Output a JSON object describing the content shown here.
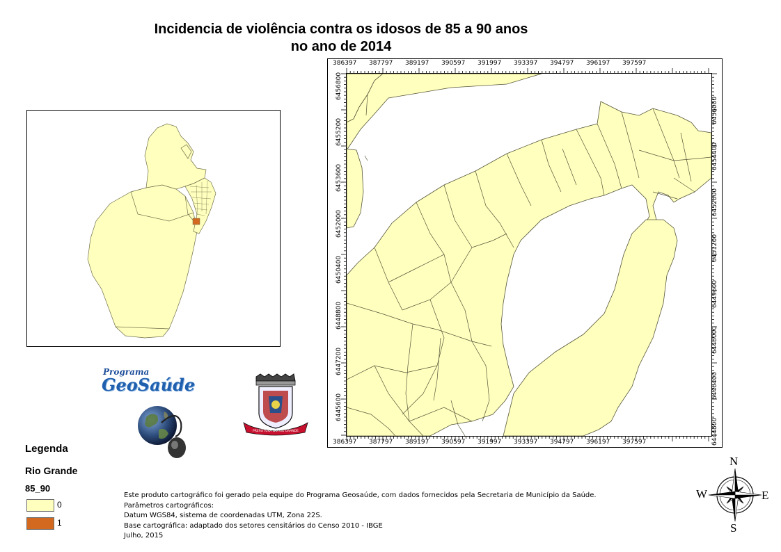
{
  "title": {
    "line1": "Incidencia de violência contra os idosos de 85 a 90 anos",
    "line2": "no ano de 2014"
  },
  "map": {
    "x_ticks": [
      "386397",
      "387797",
      "389197",
      "390597",
      "391997",
      "393397",
      "394797",
      "396197",
      "397597"
    ],
    "y_ticks_left": [
      "6456800",
      "6455200",
      "6453600",
      "6452000",
      "6450400",
      "6448800",
      "6447200",
      "6445600"
    ],
    "y_ticks_right": [
      "6456000",
      "6454400",
      "6452800",
      "6451200",
      "6449600",
      "6448000",
      "6446400",
      "6444800"
    ],
    "fill_color": "#FFFFBE",
    "highlight_color": "#D2691E",
    "background_color": "#FFFFFF"
  },
  "logos": {
    "program_small": "Programa",
    "program_big": "GeoSaúde",
    "crest_text": "PREFEITURA DO RIO GRANDE"
  },
  "legend": {
    "title": "Legenda",
    "layer": "Rio Grande",
    "field": "85_90",
    "items": [
      {
        "label": "0",
        "color": "#FFFFBE"
      },
      {
        "label": "1",
        "color": "#D2691E"
      }
    ]
  },
  "credits": [
    "Este produto cartográfico foi gerado pela equipe do Programa Geosaúde, com dados fornecidos pela Secretaria de Município da Saúde.",
    "Parâmetros cartográficos:",
    "Datum WGS84, sistema de coordenadas UTM, Zona 22S.",
    "Base cartográfica: adaptado dos setores censitários do Censo 2010 - IBGE",
    "Julho, 2015"
  ],
  "compass": {
    "n": "N",
    "s": "S",
    "e": "E",
    "w": "W"
  }
}
